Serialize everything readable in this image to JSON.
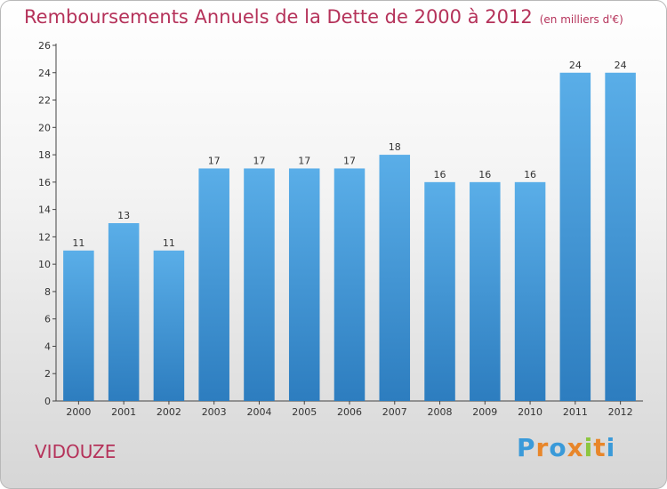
{
  "header": {
    "title": "Remboursements Annuels de la Dette de 2000 à 2012",
    "subtitle": "(en milliers d'€)"
  },
  "footer": {
    "place": "VIDOUZE",
    "logo_letters": [
      "P",
      "r",
      "o",
      "x",
      "i",
      "t",
      "i"
    ]
  },
  "colors": {
    "title": "#b5325a",
    "bar_top": "#5aaee8",
    "bar_bottom": "#2d7dbf"
  },
  "chart_data": {
    "type": "bar",
    "title": "Remboursements Annuels de la Dette de 2000 à 2012",
    "subtitle": "(en milliers d'€)",
    "xlabel": "",
    "ylabel": "",
    "categories": [
      "2000",
      "2001",
      "2002",
      "2003",
      "2004",
      "2005",
      "2006",
      "2007",
      "2008",
      "2009",
      "2010",
      "2011",
      "2012"
    ],
    "values": [
      11,
      13,
      11,
      17,
      17,
      17,
      17,
      18,
      16,
      16,
      16,
      24,
      24
    ],
    "ylim": [
      0,
      26
    ],
    "yticks": [
      0,
      2,
      4,
      6,
      8,
      10,
      12,
      14,
      16,
      18,
      20,
      22,
      24,
      26
    ],
    "grid": false,
    "legend": "none"
  }
}
